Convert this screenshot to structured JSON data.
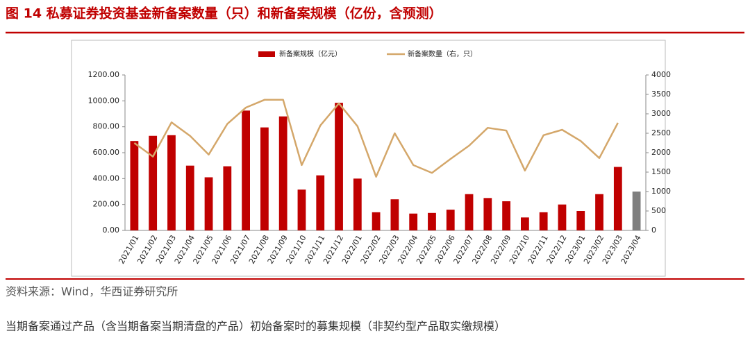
{
  "figure_title": "图 14 私募证券投资基金新备案数量（只）和新备案规模（亿份，含预测）",
  "source": "资料来源：Wind，华西证券研究所",
  "note": "当期备案通过产品（含当期备案当期清盘的产品）初始备案时的募集规模（非契约型产品取实缴规模）",
  "chart_data": {
    "type": "bar_line",
    "categories": [
      "2021/01",
      "2021/02",
      "2021/03",
      "2021/04",
      "2021/05",
      "2021/06",
      "2021/07",
      "2021/08",
      "2021/09",
      "2021/10",
      "2021/11",
      "2021/12",
      "2022/01",
      "2022/02",
      "2022/03",
      "2022/04",
      "2022/05",
      "2022/06",
      "2022/07",
      "2022/08",
      "2022/09",
      "2022/10",
      "2022/11",
      "2022/12",
      "2023/01",
      "2023/02",
      "2023/03",
      "2023/04"
    ],
    "series": [
      {
        "name": "新备案规模（亿元）",
        "type": "bar",
        "color": "#c00000",
        "colors": [
          "#c00000",
          "#c00000",
          "#c00000",
          "#c00000",
          "#c00000",
          "#c00000",
          "#c00000",
          "#c00000",
          "#c00000",
          "#c00000",
          "#c00000",
          "#c00000",
          "#c00000",
          "#c00000",
          "#c00000",
          "#c00000",
          "#c00000",
          "#c00000",
          "#c00000",
          "#c00000",
          "#c00000",
          "#c00000",
          "#c00000",
          "#c00000",
          "#c00000",
          "#c00000",
          "#c00000",
          "#7f7f7f"
        ],
        "values": [
          690,
          730,
          735,
          500,
          410,
          495,
          925,
          795,
          880,
          315,
          425,
          985,
          400,
          140,
          240,
          130,
          135,
          160,
          280,
          250,
          225,
          100,
          140,
          200,
          150,
          280,
          490,
          300
        ]
      },
      {
        "name": "新备案数量（右，只）",
        "type": "line",
        "axis": "y2",
        "color": "#d4a76a",
        "values": [
          2250,
          1900,
          2780,
          2430,
          1950,
          2740,
          3160,
          3360,
          3360,
          1680,
          2700,
          3270,
          2680,
          1380,
          2500,
          1680,
          1480,
          1840,
          2180,
          2640,
          2570,
          1540,
          2450,
          2590,
          2300,
          1860,
          2770,
          null
        ]
      }
    ],
    "ylim": [
      0,
      1200
    ],
    "yticks": [
      {
        "value": 0,
        "label": "0.00"
      },
      {
        "value": 200,
        "label": "200.00"
      },
      {
        "value": 400,
        "label": "400.00"
      },
      {
        "value": 600,
        "label": "600.00"
      },
      {
        "value": 800,
        "label": "800.00"
      },
      {
        "value": 1000,
        "label": "1000.00"
      },
      {
        "value": 1200,
        "label": "1200.00"
      }
    ],
    "y2lim": [
      0,
      4000
    ],
    "y2ticks": [
      0,
      500,
      1000,
      1500,
      2000,
      2500,
      3000,
      3500,
      4000
    ],
    "legend": "top"
  }
}
